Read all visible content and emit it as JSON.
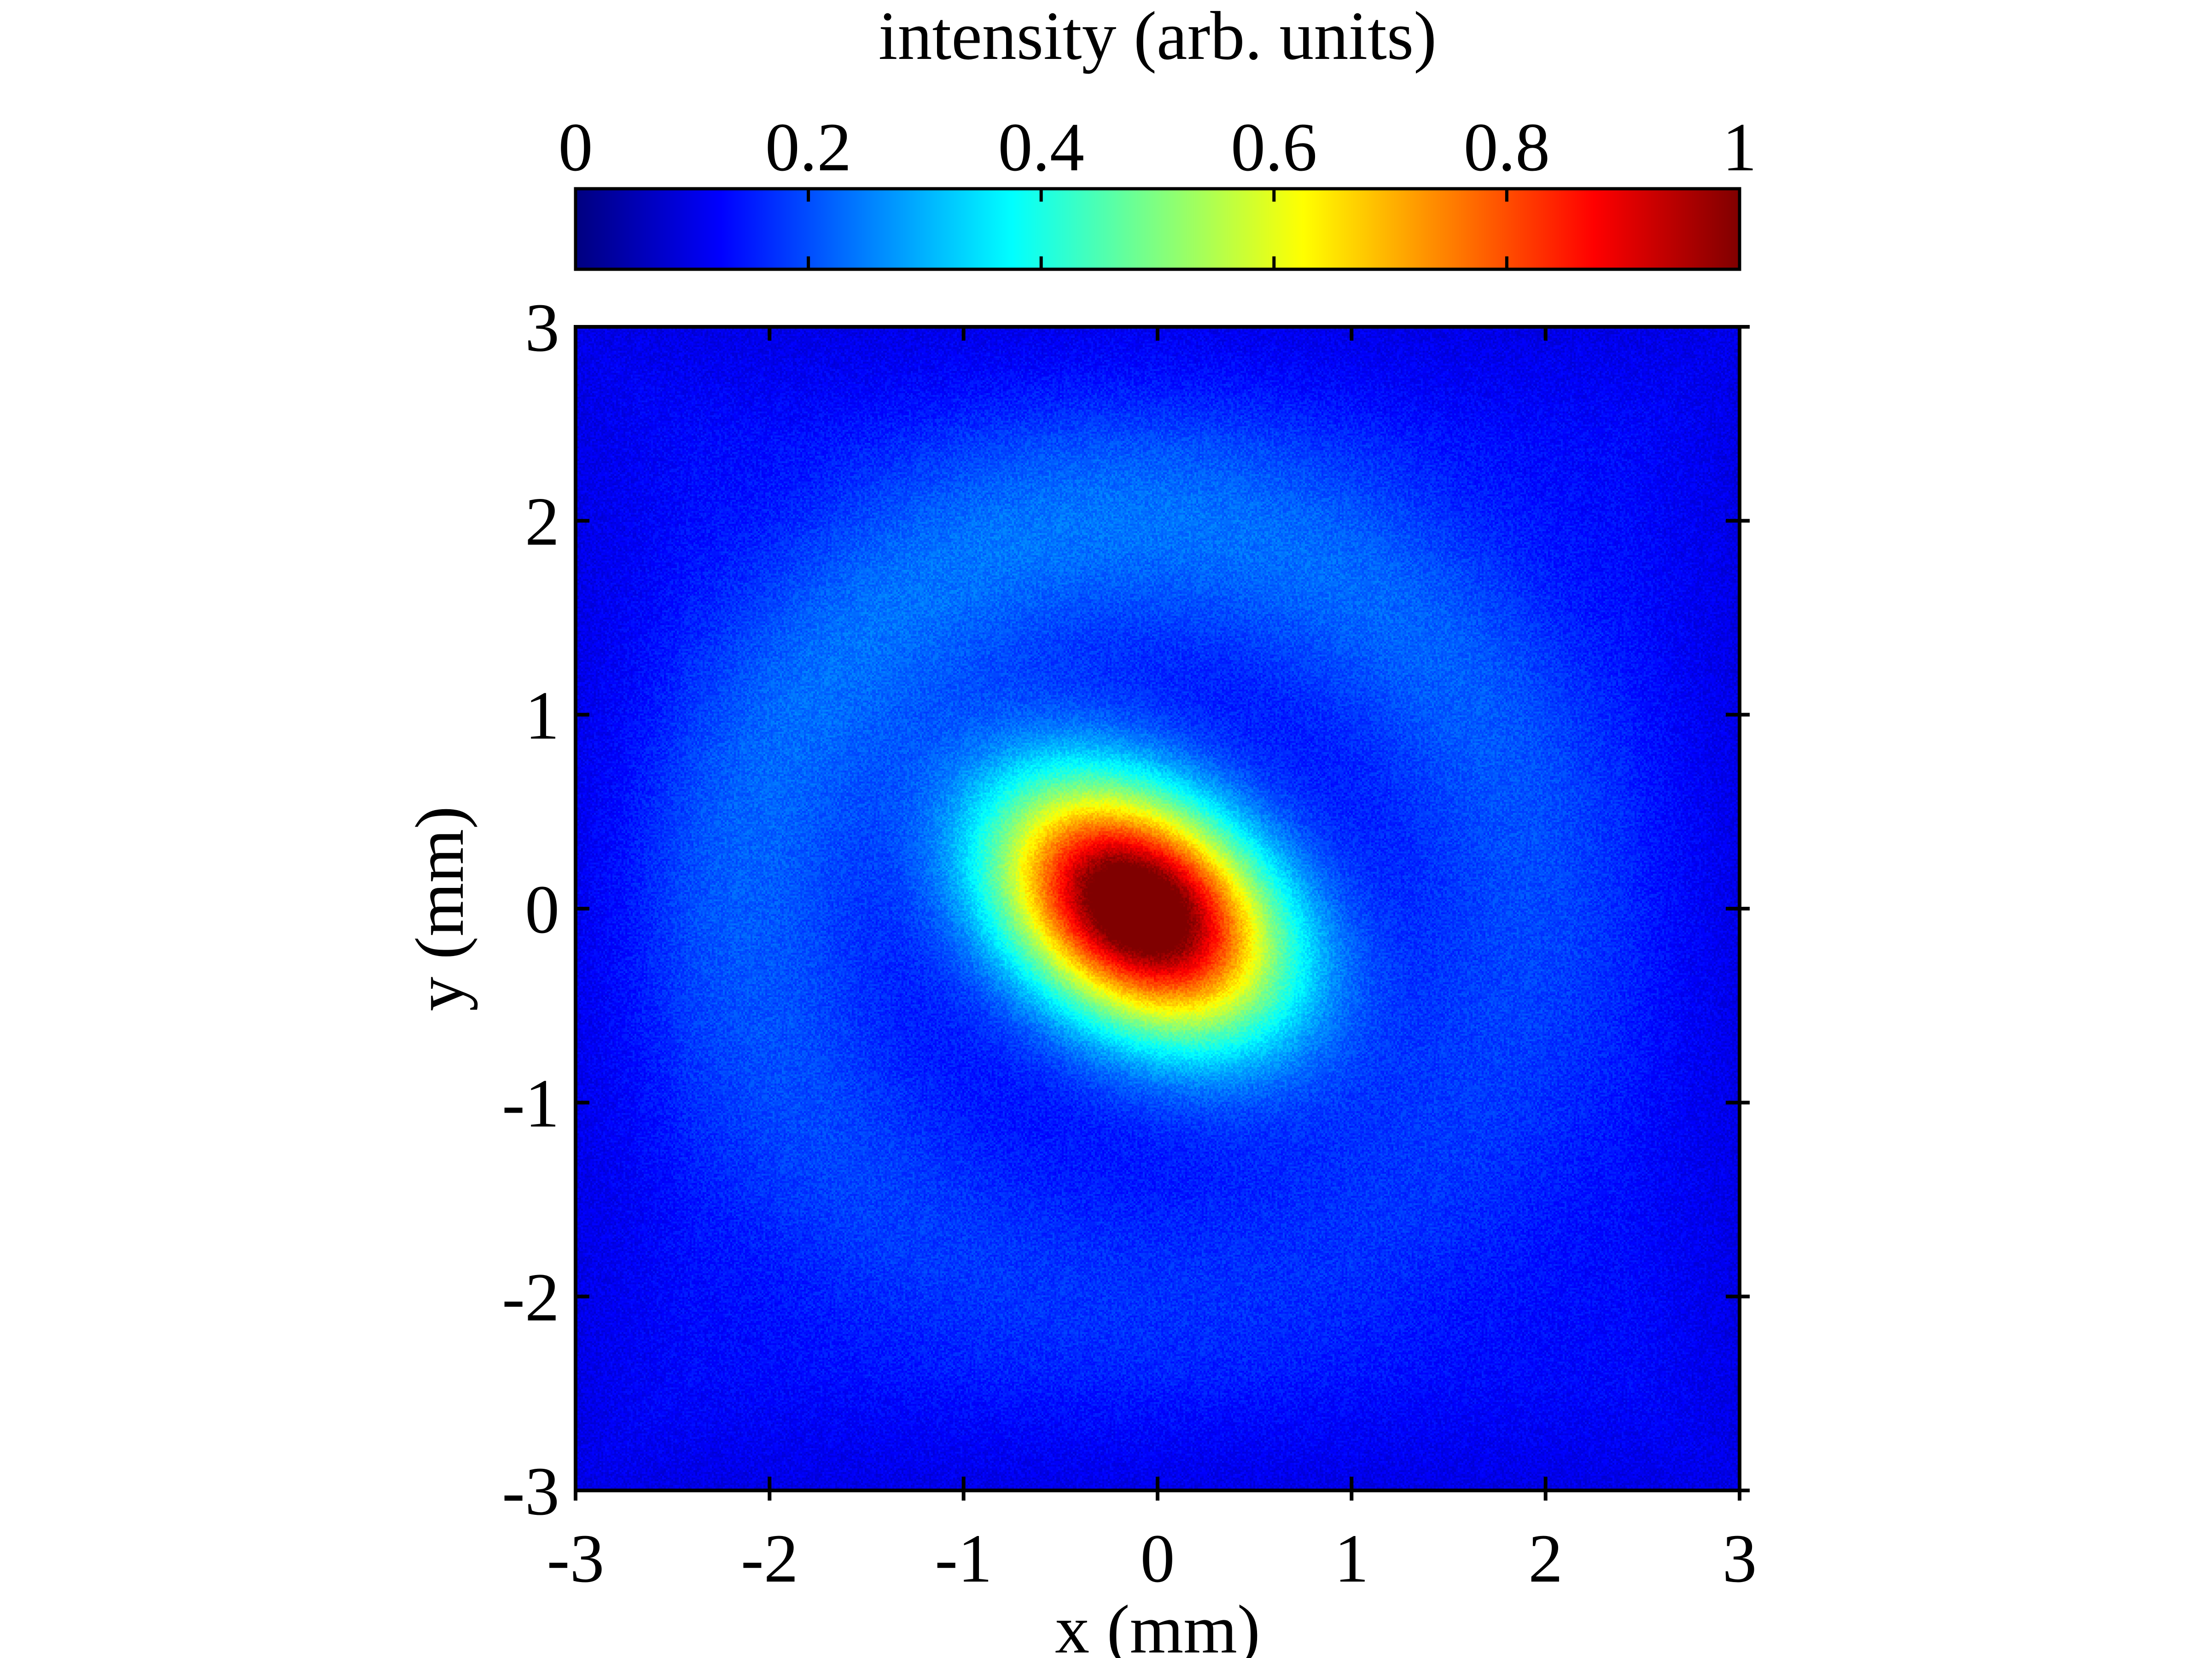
{
  "chart_data": {
    "type": "heatmap",
    "title": "",
    "xlabel": "x (mm)",
    "ylabel": "y (mm)",
    "xlim": [
      -3,
      3
    ],
    "ylim": [
      -3,
      3
    ],
    "x_ticks": [
      "-3",
      "-2",
      "-1",
      "0",
      "1",
      "2",
      "3"
    ],
    "y_ticks": [
      "-3",
      "-2",
      "-1",
      "0",
      "1",
      "2",
      "3"
    ],
    "grid": false,
    "colormap": "jet",
    "colorbar": {
      "label": "intensity (arb. units)",
      "placement": "top",
      "range": [
        0,
        1
      ],
      "ticks": [
        "0",
        "0.2",
        "0.4",
        "0.6",
        "0.8",
        "1"
      ]
    },
    "features": [
      {
        "name": "central peak",
        "center": [
          -0.1,
          0.0
        ],
        "peak_intensity": 1.0,
        "sigma_major_mm": 0.55,
        "sigma_minor_mm": 0.38,
        "orientation": "tilted, major axis from upper-left to lower-right"
      },
      {
        "name": "ring",
        "center": [
          -0.1,
          0.0
        ],
        "radius_mm": 2.0,
        "intensity": 0.23,
        "brightest_part": "upper-left arc around (-0.5, 2.0)"
      }
    ],
    "background_intensity": 0.13
  }
}
